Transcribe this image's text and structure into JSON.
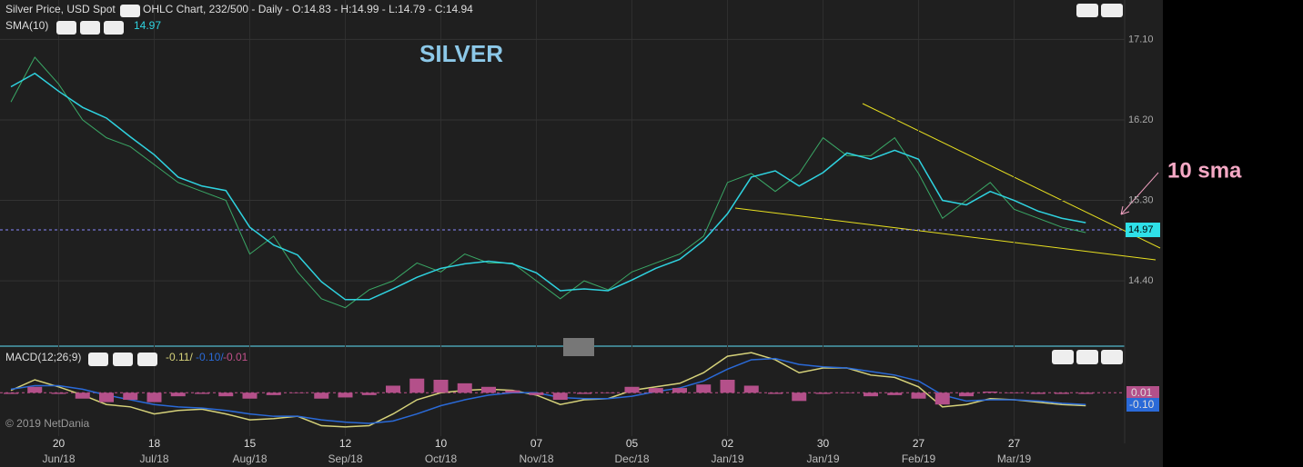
{
  "chart_data": [
    {
      "type": "line",
      "title": "SILVER",
      "header": "Silver Price, USD Spot",
      "subtitle": "OHLC Chart, 232/500 - Daily - O:14.83 - H:14.99 - L:14.79 - C:14.94",
      "indicator_readout": "14.97",
      "last_price": {
        "value": 14.97,
        "label": "14.97"
      },
      "annotations": [
        "10 sma",
        "© 2019 NetDania"
      ],
      "categories": [
        null,
        null,
        "20",
        null,
        null,
        null,
        "18",
        null,
        null,
        null,
        "15",
        null,
        null,
        null,
        "12",
        null,
        null,
        null,
        "10",
        null,
        null,
        null,
        "07",
        null,
        null,
        null,
        "05",
        null,
        null,
        null,
        "02",
        null,
        null,
        null,
        "30",
        null,
        null,
        null,
        "27",
        null,
        null,
        null,
        "27",
        null,
        null,
        null
      ],
      "category_months": [
        null,
        null,
        "Jun/18",
        null,
        null,
        null,
        "Jul/18",
        null,
        null,
        null,
        "Aug/18",
        null,
        null,
        null,
        "Sep/18",
        null,
        null,
        null,
        "Oct/18",
        null,
        null,
        null,
        "Nov/18",
        null,
        null,
        null,
        "Dec/18",
        null,
        null,
        null,
        "Jan/19",
        null,
        null,
        null,
        "Jan/19",
        null,
        null,
        null,
        "Feb/19",
        null,
        null,
        null,
        "Mar/19",
        null,
        null,
        null
      ],
      "ylim": [
        13.68,
        17.52
      ],
      "yticks": [
        {
          "value": 14.4,
          "label": "14.40"
        },
        {
          "value": 15.3,
          "label": "15.30"
        },
        {
          "value": 16.2,
          "label": "16.20"
        },
        {
          "value": 17.1,
          "label": "17.10"
        }
      ],
      "grid": true,
      "series": [
        {
          "name": "Silver Price, USD Spot",
          "color": "#3aa866",
          "values": [
            16.4,
            16.9,
            16.6,
            16.2,
            16.0,
            15.9,
            15.7,
            15.5,
            15.4,
            15.3,
            14.7,
            14.9,
            14.5,
            14.2,
            14.1,
            14.3,
            14.4,
            14.6,
            14.5,
            14.7,
            14.6,
            14.6,
            14.4,
            14.2,
            14.4,
            14.3,
            14.5,
            14.6,
            14.7,
            14.9,
            15.5,
            15.6,
            15.4,
            15.6,
            16.0,
            15.8,
            15.8,
            16.0,
            15.6,
            15.1,
            15.3,
            15.5,
            15.2,
            15.1,
            15.0,
            14.94
          ]
        },
        {
          "name": "SMA(10)",
          "color": "#2fd3e0",
          "values": [
            16.57,
            16.72,
            16.52,
            16.34,
            16.22,
            16.01,
            15.81,
            15.56,
            15.46,
            15.41,
            15.0,
            14.8,
            14.69,
            14.39,
            14.19,
            14.19,
            14.31,
            14.44,
            14.54,
            14.59,
            14.62,
            14.59,
            14.49,
            14.29,
            14.31,
            14.29,
            14.41,
            14.54,
            14.64,
            14.85,
            15.15,
            15.56,
            15.63,
            15.46,
            15.61,
            15.83,
            15.76,
            15.86,
            15.76,
            15.3,
            15.25,
            15.4,
            15.3,
            15.18,
            15.1,
            15.05
          ]
        }
      ]
    },
    {
      "type": "line",
      "title": "MACD(12;26;9)",
      "readout": [
        "-0.11/",
        "-0.10/",
        "-0.01"
      ],
      "value_boxes": [
        "0.01",
        "-0.10"
      ],
      "ylim": [
        -0.43,
        0.38
      ],
      "series": [
        {
          "color": "#d6d27a",
          "values": [
            0.02,
            0.11,
            0.05,
            -0.02,
            -0.1,
            -0.12,
            -0.18,
            -0.15,
            -0.14,
            -0.18,
            -0.23,
            -0.22,
            -0.2,
            -0.28,
            -0.29,
            -0.28,
            -0.18,
            -0.06,
            0.0,
            0.02,
            0.03,
            0.02,
            -0.02,
            -0.1,
            -0.06,
            -0.05,
            0.02,
            0.05,
            0.08,
            0.17,
            0.31,
            0.34,
            0.28,
            0.17,
            0.21,
            0.21,
            0.15,
            0.13,
            0.05,
            -0.12,
            -0.1,
            -0.05,
            -0.06,
            -0.08,
            -0.1,
            -0.11
          ]
        },
        {
          "color": "#2a6ad8",
          "values": [
            0.03,
            0.06,
            0.06,
            0.03,
            -0.02,
            -0.06,
            -0.1,
            -0.12,
            -0.13,
            -0.15,
            -0.18,
            -0.2,
            -0.2,
            -0.23,
            -0.25,
            -0.26,
            -0.24,
            -0.18,
            -0.11,
            -0.06,
            -0.02,
            0.0,
            0.0,
            -0.04,
            -0.05,
            -0.05,
            -0.03,
            0.01,
            0.04,
            0.1,
            0.2,
            0.28,
            0.29,
            0.24,
            0.22,
            0.21,
            0.18,
            0.15,
            0.1,
            -0.02,
            -0.07,
            -0.06,
            -0.06,
            -0.07,
            -0.09,
            -0.1
          ]
        },
        {
          "color": "#b4508a",
          "kind": "bar",
          "values": [
            -0.01,
            0.05,
            -0.01,
            -0.05,
            -0.08,
            -0.06,
            -0.08,
            -0.03,
            -0.01,
            -0.03,
            -0.05,
            -0.02,
            0.0,
            -0.05,
            -0.04,
            -0.02,
            0.06,
            0.12,
            0.11,
            0.08,
            0.05,
            0.02,
            -0.02,
            -0.06,
            -0.01,
            0.0,
            0.05,
            0.04,
            0.04,
            0.07,
            0.11,
            0.06,
            -0.01,
            -0.07,
            -0.01,
            0.0,
            -0.03,
            -0.02,
            -0.05,
            -0.1,
            -0.03,
            0.01,
            0.0,
            -0.01,
            -0.01,
            -0.01
          ]
        }
      ]
    }
  ]
}
